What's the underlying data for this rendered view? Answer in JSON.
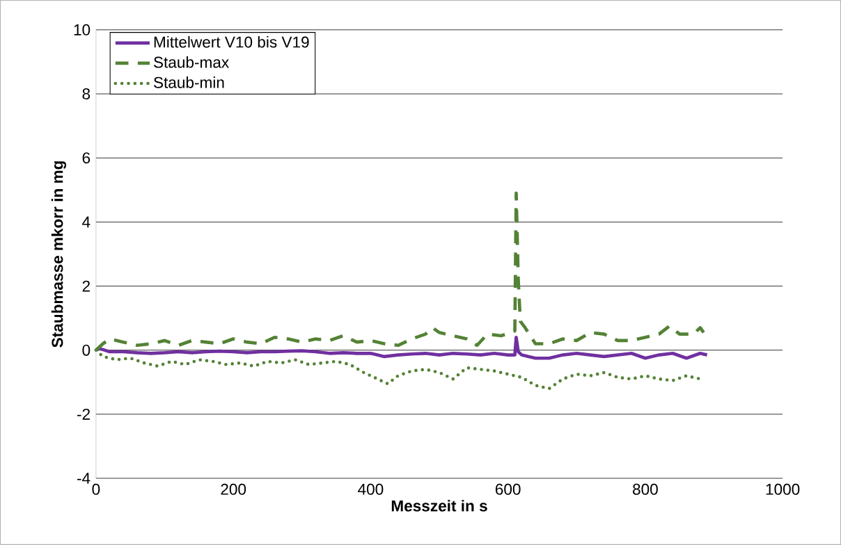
{
  "chart_data": {
    "type": "line",
    "xlabel": "Messzeit in s",
    "ylabel": "Staubmasse mkorr in mg",
    "xlim": [
      0,
      1000
    ],
    "xticks": [
      0,
      200,
      400,
      600,
      800,
      1000
    ],
    "ylim": [
      -4,
      10
    ],
    "yticks": [
      -4,
      -2,
      0,
      2,
      4,
      6,
      8,
      10
    ],
    "grid": "y",
    "legend": "top left",
    "marker": "none",
    "series": [
      {
        "name": "Mittelwert V10 bis V19",
        "color": "#7030a0",
        "line_style": "solid",
        "x": [
          0,
          5,
          20,
          40,
          60,
          80,
          100,
          120,
          140,
          160,
          180,
          200,
          220,
          240,
          260,
          280,
          300,
          320,
          340,
          360,
          380,
          400,
          420,
          440,
          460,
          480,
          500,
          520,
          540,
          560,
          580,
          600,
          610,
          612,
          615,
          620,
          640,
          660,
          680,
          700,
          720,
          740,
          760,
          780,
          800,
          820,
          840,
          860,
          880,
          890
        ],
        "values": [
          0,
          0.05,
          -0.05,
          -0.05,
          -0.08,
          -0.1,
          -0.08,
          -0.05,
          -0.08,
          -0.05,
          -0.03,
          -0.05,
          -0.08,
          -0.05,
          -0.05,
          -0.03,
          -0.02,
          -0.05,
          -0.1,
          -0.08,
          -0.1,
          -0.1,
          -0.2,
          -0.15,
          -0.12,
          -0.1,
          -0.15,
          -0.1,
          -0.12,
          -0.15,
          -0.1,
          -0.15,
          -0.15,
          0.4,
          -0.05,
          -0.15,
          -0.25,
          -0.25,
          -0.15,
          -0.1,
          -0.15,
          -0.2,
          -0.15,
          -0.1,
          -0.25,
          -0.15,
          -0.1,
          -0.25,
          -0.1,
          -0.15
        ]
      },
      {
        "name": "Staub-max",
        "color": "#548235",
        "line_style": "dashed",
        "x": [
          0,
          10,
          20,
          40,
          60,
          80,
          100,
          120,
          140,
          160,
          180,
          200,
          220,
          240,
          260,
          280,
          300,
          320,
          340,
          360,
          380,
          400,
          420,
          440,
          460,
          480,
          490,
          500,
          520,
          540,
          555,
          570,
          590,
          605,
          610,
          612,
          615,
          618,
          625,
          640,
          660,
          680,
          700,
          720,
          740,
          760,
          780,
          800,
          820,
          835,
          850,
          870,
          880,
          885
        ],
        "values": [
          0,
          0.2,
          0.35,
          0.25,
          0.15,
          0.2,
          0.3,
          0.15,
          0.3,
          0.25,
          0.2,
          0.35,
          0.25,
          0.2,
          0.4,
          0.35,
          0.25,
          0.35,
          0.3,
          0.45,
          0.25,
          0.3,
          0.2,
          0.15,
          0.35,
          0.5,
          0.7,
          0.55,
          0.45,
          0.35,
          0.15,
          0.5,
          0.45,
          0.55,
          0.6,
          4.9,
          2.2,
          0.9,
          0.7,
          0.2,
          0.2,
          0.35,
          0.3,
          0.55,
          0.5,
          0.3,
          0.3,
          0.4,
          0.5,
          0.75,
          0.5,
          0.5,
          0.7,
          0.55
        ]
      },
      {
        "name": "Staub-min",
        "color": "#548235",
        "line_style": "dotted",
        "x": [
          0,
          10,
          30,
          50,
          70,
          90,
          110,
          130,
          150,
          170,
          190,
          210,
          230,
          250,
          270,
          290,
          310,
          330,
          350,
          370,
          390,
          410,
          425,
          440,
          460,
          480,
          500,
          520,
          540,
          560,
          580,
          600,
          620,
          640,
          660,
          680,
          700,
          720,
          740,
          760,
          780,
          800,
          820,
          840,
          860,
          880
        ],
        "values": [
          0,
          -0.2,
          -0.3,
          -0.25,
          -0.4,
          -0.5,
          -0.35,
          -0.45,
          -0.3,
          -0.35,
          -0.45,
          -0.4,
          -0.5,
          -0.35,
          -0.4,
          -0.3,
          -0.45,
          -0.4,
          -0.35,
          -0.45,
          -0.7,
          -0.9,
          -1.05,
          -0.8,
          -0.65,
          -0.6,
          -0.7,
          -0.9,
          -0.55,
          -0.6,
          -0.65,
          -0.75,
          -0.85,
          -1.1,
          -1.2,
          -0.9,
          -0.75,
          -0.8,
          -0.7,
          -0.85,
          -0.9,
          -0.8,
          -0.9,
          -0.95,
          -0.8,
          -0.9
        ]
      }
    ]
  }
}
